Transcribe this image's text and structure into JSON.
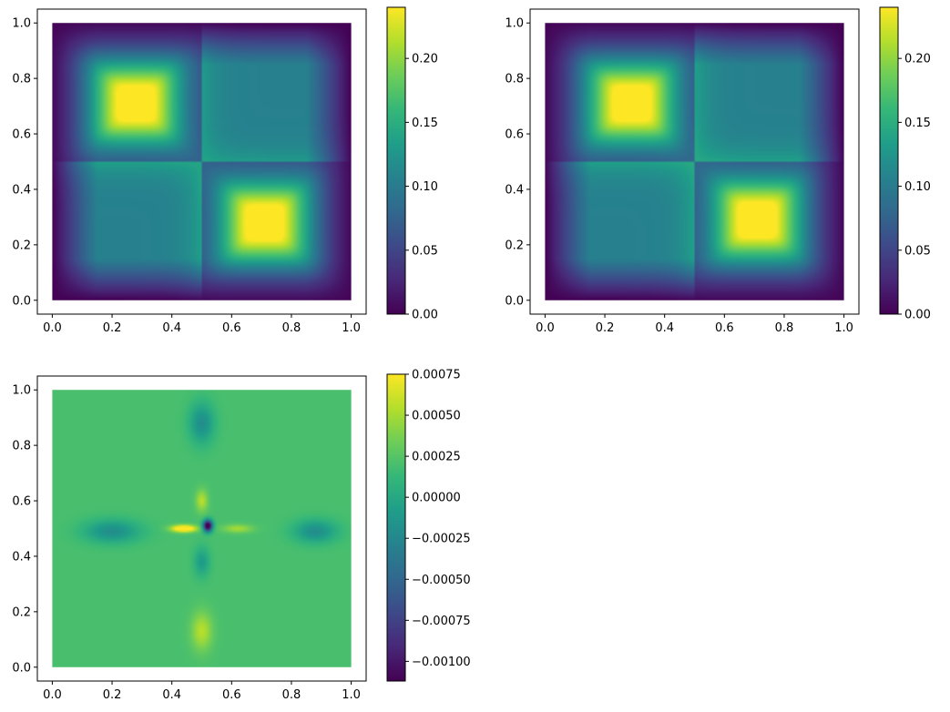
{
  "figure": {
    "layout": "2x2 grid, bottom-right empty",
    "background": "#ffffff"
  },
  "chart_data": [
    {
      "type": "heatmap",
      "title": "",
      "xlabel": "",
      "ylabel": "",
      "colormap": "viridis",
      "xlim": [
        -0.05,
        1.05
      ],
      "ylim": [
        -0.05,
        1.05
      ],
      "x_ticks": [
        0.0,
        0.2,
        0.4,
        0.6,
        0.8,
        1.0
      ],
      "y_ticks": [
        0.0,
        0.2,
        0.4,
        0.6,
        0.8,
        1.0
      ],
      "x_tick_labels": [
        "0.0",
        "0.2",
        "0.4",
        "0.6",
        "0.8",
        "1.0"
      ],
      "y_tick_labels": [
        "0.0",
        "0.2",
        "0.4",
        "0.6",
        "0.8",
        "1.0"
      ],
      "data_extent": [
        0,
        1,
        0,
        1
      ],
      "value_range": [
        0.0,
        0.24
      ],
      "features": [
        {
          "center": [
            0.28,
            0.71
          ],
          "peak": 0.24
        },
        {
          "center": [
            0.71,
            0.28
          ],
          "peak": 0.24
        }
      ],
      "colorbar": {
        "range": [
          0.0,
          0.24
        ],
        "ticks": [
          0.0,
          0.05,
          0.1,
          0.15,
          0.2
        ],
        "tick_labels": [
          "0.00",
          "0.05",
          "0.10",
          "0.15",
          "0.20"
        ]
      }
    },
    {
      "type": "heatmap",
      "title": "",
      "xlabel": "",
      "ylabel": "",
      "colormap": "viridis",
      "xlim": [
        -0.05,
        1.05
      ],
      "ylim": [
        -0.05,
        1.05
      ],
      "x_ticks": [
        0.0,
        0.2,
        0.4,
        0.6,
        0.8,
        1.0
      ],
      "y_ticks": [
        0.0,
        0.2,
        0.4,
        0.6,
        0.8,
        1.0
      ],
      "x_tick_labels": [
        "0.0",
        "0.2",
        "0.4",
        "0.6",
        "0.8",
        "1.0"
      ],
      "y_tick_labels": [
        "0.0",
        "0.2",
        "0.4",
        "0.6",
        "0.8",
        "1.0"
      ],
      "data_extent": [
        0,
        1,
        0,
        1
      ],
      "value_range": [
        0.0,
        0.24
      ],
      "features": [
        {
          "center": [
            0.29,
            0.71
          ],
          "peak": 0.24
        },
        {
          "center": [
            0.71,
            0.29
          ],
          "peak": 0.24
        }
      ],
      "colorbar": {
        "range": [
          0.0,
          0.24
        ],
        "ticks": [
          0.0,
          0.05,
          0.1,
          0.15,
          0.2
        ],
        "tick_labels": [
          "0.00",
          "0.05",
          "0.10",
          "0.15",
          "0.20"
        ]
      }
    },
    {
      "type": "heatmap",
      "title": "",
      "xlabel": "",
      "ylabel": "",
      "colormap": "viridis",
      "xlim": [
        -0.05,
        1.05
      ],
      "ylim": [
        -0.05,
        1.05
      ],
      "x_ticks": [
        0.0,
        0.2,
        0.4,
        0.6,
        0.8,
        1.0
      ],
      "y_ticks": [
        0.0,
        0.2,
        0.4,
        0.6,
        0.8,
        1.0
      ],
      "x_tick_labels": [
        "0.0",
        "0.2",
        "0.4",
        "0.6",
        "0.8",
        "1.0"
      ],
      "y_tick_labels": [
        "0.0",
        "0.2",
        "0.4",
        "0.6",
        "0.8",
        "1.0"
      ],
      "data_extent": [
        0,
        1,
        0,
        1
      ],
      "value_range": [
        -0.00112,
        0.00075
      ],
      "background_value": 0.0002,
      "features": [
        {
          "center": [
            0.5,
            0.5
          ],
          "note": "dipole: max at left, min at right"
        },
        {
          "center": [
            0.5,
            0.13
          ],
          "sign": "positive"
        },
        {
          "center": [
            0.5,
            0.6
          ],
          "sign": "positive"
        },
        {
          "center": [
            0.2,
            0.49
          ],
          "sign": "negative"
        },
        {
          "center": [
            0.88,
            0.49
          ],
          "sign": "negative"
        },
        {
          "center": [
            0.5,
            0.88
          ],
          "sign": "negative"
        },
        {
          "center": [
            0.5,
            0.38
          ],
          "sign": "negative"
        }
      ],
      "colorbar": {
        "range": [
          -0.00112,
          0.00075
        ],
        "ticks": [
          -0.001,
          -0.00075,
          -0.0005,
          -0.00025,
          0.0,
          0.00025,
          0.0005,
          0.00075
        ],
        "tick_labels": [
          "−0.00100",
          "−0.00075",
          "−0.00050",
          "−0.00025",
          "0.00000",
          "0.00025",
          "0.00050",
          "0.00075"
        ]
      }
    }
  ]
}
